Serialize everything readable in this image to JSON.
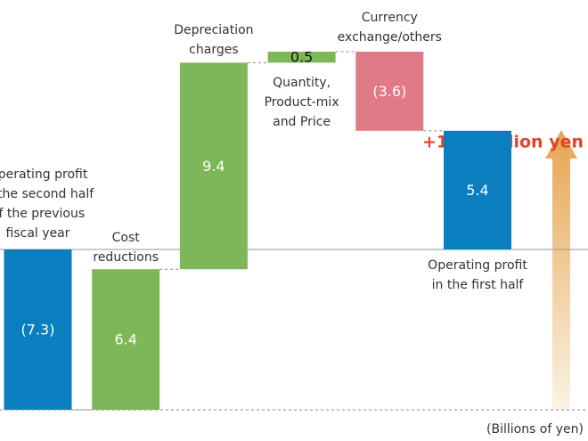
{
  "chart_data": {
    "type": "waterfall",
    "categories": [
      "Operating profit\nin the second half\nof the previous\nfiscal year",
      "Cost\nreductions",
      "Depreciation\ncharges",
      "Quantity,\nProduct-mix\nand Price",
      "Currency\nexchange/others",
      "Operating profit\nin the first half"
    ],
    "values": [
      -7.3,
      6.4,
      9.4,
      0.5,
      -3.6,
      5.4
    ],
    "value_labels": [
      "(7.3)",
      "6.4",
      "9.4",
      "0.5",
      "(3.6)",
      "5.4"
    ],
    "colors": [
      "#0a7fc0",
      "#7db75a",
      "#7db75a",
      "#7db75a",
      "#e07a86",
      "#0a7fc0"
    ],
    "ylim": [
      -8,
      11
    ],
    "annotation": "+12.7 billion yen",
    "annotation_color": "#e0452a",
    "unit_note": "(Billions of yen)"
  }
}
